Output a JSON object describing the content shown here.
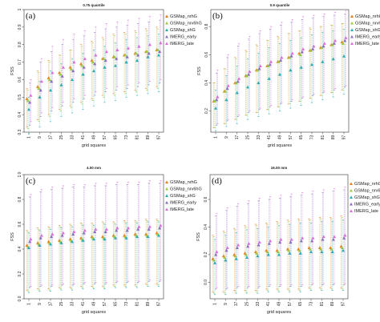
{
  "colors": {
    "GSMap_nrhG": "#ee7f1b",
    "GSMap_nrv6hG": "#9ccc3c",
    "GSMap_shG": "#26b0b4",
    "IMERG_early": "#8a6fc0",
    "IMERG_late": "#dd6fdd"
  },
  "chart_data": [
    {
      "panel": "(a)",
      "title": "0.75 quantile",
      "type": "scatter",
      "x": [
        "1",
        "9",
        "17",
        "25",
        "33",
        "41",
        "49",
        "57",
        "65",
        "73",
        "81",
        "89",
        "97"
      ],
      "xlabel": "grid squares",
      "ylabel": "FSS",
      "ylim": [
        0.3,
        1.0
      ],
      "yticks": [
        "0.3",
        "0.4",
        "0.5",
        "0.6",
        "0.7",
        "0.8",
        "0.9",
        "1"
      ],
      "legend": "top-right",
      "series": [
        {
          "name": "GSMap_nrhG",
          "mean": [
            0.49,
            0.56,
            0.61,
            0.64,
            0.67,
            0.69,
            0.71,
            0.72,
            0.73,
            0.74,
            0.75,
            0.76,
            0.77
          ],
          "low": [
            0.33,
            0.37,
            0.4,
            0.43,
            0.45,
            0.47,
            0.49,
            0.51,
            0.52,
            0.53,
            0.54,
            0.55,
            0.56
          ],
          "high": [
            0.55,
            0.65,
            0.71,
            0.74,
            0.77,
            0.8,
            0.82,
            0.84,
            0.86,
            0.87,
            0.88,
            0.89,
            0.9
          ]
        },
        {
          "name": "GSMap_nrv6hG",
          "mean": [
            0.48,
            0.55,
            0.6,
            0.63,
            0.66,
            0.68,
            0.7,
            0.72,
            0.73,
            0.74,
            0.75,
            0.76,
            0.77
          ],
          "low": [
            0.32,
            0.36,
            0.39,
            0.42,
            0.44,
            0.46,
            0.48,
            0.5,
            0.51,
            0.52,
            0.53,
            0.54,
            0.55
          ],
          "high": [
            0.54,
            0.64,
            0.7,
            0.74,
            0.77,
            0.79,
            0.81,
            0.83,
            0.85,
            0.86,
            0.87,
            0.88,
            0.89
          ]
        },
        {
          "name": "GSMap_shG",
          "mean": [
            0.43,
            0.5,
            0.54,
            0.57,
            0.6,
            0.63,
            0.65,
            0.67,
            0.68,
            0.7,
            0.71,
            0.73,
            0.74
          ],
          "low": [
            0.29,
            0.33,
            0.36,
            0.39,
            0.41,
            0.43,
            0.45,
            0.47,
            0.48,
            0.5,
            0.51,
            0.52,
            0.53
          ],
          "high": [
            0.5,
            0.59,
            0.65,
            0.69,
            0.72,
            0.75,
            0.77,
            0.79,
            0.81,
            0.83,
            0.84,
            0.85,
            0.86
          ]
        },
        {
          "name": "IMERG_early",
          "mean": [
            0.47,
            0.54,
            0.59,
            0.62,
            0.65,
            0.67,
            0.69,
            0.71,
            0.72,
            0.73,
            0.74,
            0.75,
            0.76
          ],
          "low": [
            0.34,
            0.39,
            0.42,
            0.45,
            0.47,
            0.49,
            0.51,
            0.53,
            0.54,
            0.55,
            0.56,
            0.57,
            0.58
          ],
          "high": [
            0.58,
            0.7,
            0.76,
            0.8,
            0.83,
            0.85,
            0.87,
            0.89,
            0.9,
            0.91,
            0.92,
            0.93,
            0.94
          ]
        },
        {
          "name": "IMERG_late",
          "mean": [
            0.51,
            0.59,
            0.64,
            0.67,
            0.7,
            0.72,
            0.74,
            0.76,
            0.77,
            0.78,
            0.79,
            0.8,
            0.81
          ],
          "low": [
            0.36,
            0.41,
            0.44,
            0.47,
            0.49,
            0.51,
            0.53,
            0.55,
            0.56,
            0.57,
            0.58,
            0.59,
            0.6
          ],
          "high": [
            0.6,
            0.72,
            0.79,
            0.83,
            0.86,
            0.88,
            0.9,
            0.92,
            0.93,
            0.94,
            0.95,
            0.96,
            0.97
          ]
        }
      ]
    },
    {
      "panel": "(b)",
      "title": "0.9 quantile",
      "type": "scatter",
      "x": [
        "1",
        "9",
        "17",
        "25",
        "33",
        "41",
        "49",
        "57",
        "65",
        "73",
        "81",
        "89",
        "97"
      ],
      "xlabel": "grid squares",
      "ylabel": "FSS",
      "ylim": [
        0.05,
        0.92
      ],
      "yticks": [
        "0.2",
        "0.4",
        "0.6",
        "0.8"
      ],
      "legend": "top-right",
      "series": [
        {
          "name": "GSMap_nrhG",
          "mean": [
            0.27,
            0.34,
            0.4,
            0.45,
            0.49,
            0.52,
            0.55,
            0.58,
            0.61,
            0.63,
            0.65,
            0.67,
            0.69
          ],
          "low": [
            0.08,
            0.11,
            0.14,
            0.17,
            0.19,
            0.21,
            0.23,
            0.25,
            0.27,
            0.29,
            0.31,
            0.33,
            0.35
          ],
          "high": [
            0.4,
            0.5,
            0.58,
            0.63,
            0.67,
            0.7,
            0.73,
            0.75,
            0.77,
            0.79,
            0.8,
            0.81,
            0.82
          ]
        },
        {
          "name": "GSMap_nrv6hG",
          "mean": [
            0.27,
            0.34,
            0.4,
            0.45,
            0.49,
            0.52,
            0.55,
            0.58,
            0.6,
            0.63,
            0.65,
            0.67,
            0.68
          ],
          "low": [
            0.08,
            0.11,
            0.14,
            0.17,
            0.19,
            0.21,
            0.23,
            0.25,
            0.27,
            0.29,
            0.31,
            0.33,
            0.35
          ],
          "high": [
            0.4,
            0.5,
            0.57,
            0.62,
            0.66,
            0.7,
            0.72,
            0.75,
            0.77,
            0.78,
            0.8,
            0.81,
            0.82
          ]
        },
        {
          "name": "GSMap_shG",
          "mean": [
            0.22,
            0.28,
            0.33,
            0.37,
            0.4,
            0.43,
            0.46,
            0.49,
            0.51,
            0.53,
            0.55,
            0.57,
            0.59
          ],
          "low": [
            0.06,
            0.09,
            0.11,
            0.14,
            0.16,
            0.18,
            0.2,
            0.22,
            0.24,
            0.26,
            0.28,
            0.3,
            0.32
          ],
          "high": [
            0.35,
            0.45,
            0.52,
            0.57,
            0.61,
            0.65,
            0.68,
            0.7,
            0.72,
            0.74,
            0.76,
            0.77,
            0.78
          ]
        },
        {
          "name": "IMERG_early",
          "mean": [
            0.28,
            0.36,
            0.41,
            0.46,
            0.5,
            0.53,
            0.56,
            0.59,
            0.62,
            0.64,
            0.66,
            0.68,
            0.7
          ],
          "low": [
            0.1,
            0.13,
            0.16,
            0.19,
            0.21,
            0.23,
            0.25,
            0.27,
            0.29,
            0.31,
            0.33,
            0.35,
            0.37
          ],
          "high": [
            0.47,
            0.58,
            0.66,
            0.71,
            0.75,
            0.78,
            0.81,
            0.83,
            0.85,
            0.86,
            0.87,
            0.88,
            0.89
          ]
        },
        {
          "name": "IMERG_late",
          "mean": [
            0.3,
            0.38,
            0.43,
            0.48,
            0.52,
            0.55,
            0.58,
            0.61,
            0.64,
            0.66,
            0.68,
            0.7,
            0.72
          ],
          "low": [
            0.11,
            0.14,
            0.17,
            0.2,
            0.22,
            0.24,
            0.26,
            0.28,
            0.3,
            0.32,
            0.34,
            0.36,
            0.38
          ],
          "high": [
            0.49,
            0.6,
            0.68,
            0.73,
            0.77,
            0.8,
            0.83,
            0.85,
            0.87,
            0.88,
            0.89,
            0.9,
            0.91
          ]
        }
      ]
    },
    {
      "panel": "(c)",
      "title": "4.00 mm",
      "type": "scatter",
      "x": [
        "1",
        "9",
        "17",
        "25",
        "33",
        "41",
        "49",
        "57",
        "65",
        "73",
        "81",
        "89",
        "97"
      ],
      "xlabel": "grid squares",
      "ylabel": "FSS",
      "ylim": [
        0.0,
        1.0
      ],
      "yticks": [
        "0.0",
        "0.2",
        "0.4",
        "0.6",
        "0.8",
        "1.0"
      ],
      "legend": "top-right",
      "series": [
        {
          "name": "GSMap_nrhG",
          "mean": [
            0.43,
            0.45,
            0.46,
            0.47,
            0.48,
            0.49,
            0.5,
            0.5,
            0.51,
            0.51,
            0.52,
            0.52,
            0.53
          ],
          "low": [
            0.07,
            0.08,
            0.08,
            0.09,
            0.09,
            0.1,
            0.1,
            0.1,
            0.11,
            0.11,
            0.11,
            0.12,
            0.12
          ],
          "high": [
            0.55,
            0.57,
            0.58,
            0.59,
            0.6,
            0.61,
            0.61,
            0.62,
            0.62,
            0.63,
            0.63,
            0.64,
            0.64
          ]
        },
        {
          "name": "GSMap_nrv6hG",
          "mean": [
            0.42,
            0.44,
            0.45,
            0.46,
            0.47,
            0.48,
            0.49,
            0.49,
            0.5,
            0.5,
            0.51,
            0.51,
            0.52
          ],
          "low": [
            0.06,
            0.07,
            0.07,
            0.08,
            0.08,
            0.09,
            0.09,
            0.09,
            0.1,
            0.1,
            0.1,
            0.11,
            0.11
          ],
          "high": [
            0.54,
            0.56,
            0.57,
            0.58,
            0.59,
            0.6,
            0.6,
            0.61,
            0.61,
            0.62,
            0.62,
            0.63,
            0.63
          ]
        },
        {
          "name": "GSMap_shG",
          "mean": [
            0.41,
            0.43,
            0.44,
            0.45,
            0.46,
            0.47,
            0.48,
            0.48,
            0.49,
            0.49,
            0.5,
            0.5,
            0.51
          ],
          "low": [
            0.05,
            0.06,
            0.06,
            0.07,
            0.07,
            0.08,
            0.08,
            0.08,
            0.09,
            0.09,
            0.09,
            0.1,
            0.1
          ],
          "high": [
            0.53,
            0.55,
            0.56,
            0.57,
            0.58,
            0.59,
            0.59,
            0.6,
            0.6,
            0.61,
            0.61,
            0.62,
            0.62
          ]
        },
        {
          "name": "IMERG_early",
          "mean": [
            0.46,
            0.49,
            0.5,
            0.51,
            0.52,
            0.53,
            0.54,
            0.54,
            0.55,
            0.55,
            0.56,
            0.56,
            0.57
          ],
          "low": [
            0.09,
            0.1,
            0.1,
            0.11,
            0.11,
            0.12,
            0.12,
            0.12,
            0.13,
            0.13,
            0.13,
            0.14,
            0.14
          ],
          "high": [
            0.82,
            0.86,
            0.88,
            0.89,
            0.9,
            0.9,
            0.91,
            0.91,
            0.92,
            0.92,
            0.92,
            0.93,
            0.93
          ]
        },
        {
          "name": "IMERG_late",
          "mean": [
            0.48,
            0.51,
            0.52,
            0.53,
            0.54,
            0.55,
            0.56,
            0.56,
            0.57,
            0.57,
            0.58,
            0.58,
            0.59
          ],
          "low": [
            0.1,
            0.11,
            0.11,
            0.12,
            0.12,
            0.13,
            0.13,
            0.13,
            0.14,
            0.14,
            0.14,
            0.15,
            0.15
          ],
          "high": [
            0.84,
            0.88,
            0.9,
            0.91,
            0.92,
            0.92,
            0.93,
            0.93,
            0.94,
            0.94,
            0.94,
            0.95,
            0.95
          ]
        }
      ]
    },
    {
      "panel": "(d)",
      "title": "16.00 mm",
      "type": "scatter",
      "x": [
        "1",
        "9",
        "17",
        "25",
        "33",
        "41",
        "49",
        "57",
        "65",
        "73",
        "81",
        "89",
        "97"
      ],
      "xlabel": "grid squares",
      "ylabel": "FSS",
      "ylim": [
        -0.12,
        0.78
      ],
      "yticks": [
        "0.0",
        "0.2",
        "0.4",
        "0.6"
      ],
      "legend": "top-right",
      "series": [
        {
          "name": "GSMap_nrhG",
          "mean": [
            0.17,
            0.19,
            0.2,
            0.21,
            0.22,
            0.23,
            0.23,
            0.24,
            0.24,
            0.25,
            0.25,
            0.25,
            0.26
          ],
          "low": [
            -0.07,
            -0.07,
            -0.06,
            -0.06,
            -0.06,
            -0.05,
            -0.05,
            -0.05,
            -0.05,
            -0.04,
            -0.04,
            -0.04,
            -0.04
          ],
          "high": [
            0.34,
            0.37,
            0.39,
            0.41,
            0.42,
            0.43,
            0.44,
            0.45,
            0.46,
            0.46,
            0.47,
            0.47,
            0.48
          ]
        },
        {
          "name": "GSMap_nrv6hG",
          "mean": [
            0.16,
            0.18,
            0.19,
            0.2,
            0.21,
            0.22,
            0.22,
            0.23,
            0.23,
            0.24,
            0.24,
            0.24,
            0.25
          ],
          "low": [
            -0.08,
            -0.08,
            -0.07,
            -0.07,
            -0.07,
            -0.06,
            -0.06,
            -0.06,
            -0.06,
            -0.05,
            -0.05,
            -0.05,
            -0.05
          ],
          "high": [
            0.33,
            0.36,
            0.38,
            0.4,
            0.41,
            0.42,
            0.43,
            0.44,
            0.45,
            0.45,
            0.46,
            0.46,
            0.47
          ]
        },
        {
          "name": "GSMap_shG",
          "mean": [
            0.14,
            0.16,
            0.17,
            0.18,
            0.19,
            0.2,
            0.2,
            0.21,
            0.21,
            0.22,
            0.22,
            0.22,
            0.23
          ],
          "low": [
            -0.09,
            -0.09,
            -0.08,
            -0.08,
            -0.08,
            -0.07,
            -0.07,
            -0.07,
            -0.07,
            -0.06,
            -0.06,
            -0.06,
            -0.06
          ],
          "high": [
            0.31,
            0.34,
            0.36,
            0.38,
            0.39,
            0.4,
            0.41,
            0.42,
            0.43,
            0.43,
            0.44,
            0.44,
            0.45
          ]
        },
        {
          "name": "IMERG_early",
          "mean": [
            0.2,
            0.23,
            0.25,
            0.26,
            0.27,
            0.28,
            0.29,
            0.29,
            0.3,
            0.3,
            0.31,
            0.31,
            0.32
          ],
          "low": [
            -0.05,
            -0.05,
            -0.04,
            -0.04,
            -0.04,
            -0.03,
            -0.03,
            -0.03,
            -0.03,
            -0.02,
            -0.02,
            -0.02,
            -0.02
          ],
          "high": [
            0.48,
            0.52,
            0.55,
            0.57,
            0.59,
            0.6,
            0.61,
            0.62,
            0.63,
            0.64,
            0.65,
            0.66,
            0.67
          ]
        },
        {
          "name": "IMERG_late",
          "mean": [
            0.22,
            0.25,
            0.27,
            0.28,
            0.29,
            0.3,
            0.31,
            0.31,
            0.32,
            0.32,
            0.33,
            0.33,
            0.34
          ],
          "low": [
            -0.04,
            -0.04,
            -0.03,
            -0.03,
            -0.03,
            -0.02,
            -0.02,
            -0.02,
            -0.02,
            -0.01,
            -0.01,
            -0.01,
            -0.01
          ],
          "high": [
            0.5,
            0.54,
            0.57,
            0.59,
            0.61,
            0.62,
            0.63,
            0.64,
            0.65,
            0.66,
            0.67,
            0.68,
            0.69
          ]
        }
      ]
    }
  ]
}
